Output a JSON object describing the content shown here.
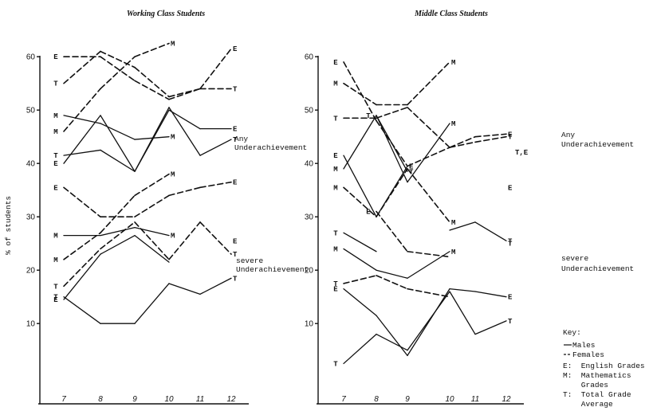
{
  "chart_data": [
    {
      "type": "line",
      "title": "Working Class Students",
      "ylabel": "% of students",
      "x": [
        "7",
        "8",
        "9",
        "10",
        "11",
        "12"
      ],
      "ylim": [
        0,
        62
      ],
      "yticks": [
        10,
        20,
        30,
        40,
        50,
        60
      ],
      "grid": false,
      "groups": [
        {
          "label": "Any Underachievement",
          "series": [
            {
              "code": "E",
              "sex": "Females",
              "values": [
                60,
                60,
                55.5,
                52,
                54,
                61.5
              ]
            },
            {
              "code": "M",
              "sex": "Females",
              "values": [
                46,
                54,
                60,
                62.5,
                null,
                null
              ]
            },
            {
              "code": "T",
              "sex": "Females",
              "values": [
                55,
                61,
                58,
                52.5,
                54,
                54
              ]
            },
            {
              "code": "M",
              "sex": "Males",
              "values": [
                49,
                47.5,
                44.5,
                45,
                null,
                null
              ]
            },
            {
              "code": "E",
              "sex": "Males",
              "values": [
                40,
                49,
                38.5,
                50,
                46.5,
                46.5
              ]
            },
            {
              "code": "T",
              "sex": "Males",
              "values": [
                41.5,
                42.5,
                38.5,
                50.5,
                41.5,
                44.5
              ]
            }
          ]
        },
        {
          "label": "severe Underachievement",
          "series": [
            {
              "code": "E",
              "sex": "Females",
              "values": [
                35.5,
                30,
                30,
                34,
                35.5,
                36.5
              ]
            },
            {
              "code": "M",
              "sex": "Females",
              "values": [
                22,
                27,
                34,
                38,
                null,
                null
              ]
            },
            {
              "code": "T",
              "sex": "Females",
              "values": [
                17,
                24,
                29,
                22,
                29,
                23
              ]
            },
            {
              "code": "M",
              "sex": "Males",
              "values": [
                26.5,
                26.5,
                28,
                26.5,
                null,
                null
              ]
            },
            {
              "code": "E",
              "sex": "Males",
              "values": [
                14.5,
                23,
                26.5,
                21.5,
                null,
                25.5
              ]
            },
            {
              "code": "T",
              "sex": "Males",
              "values": [
                15,
                10,
                10,
                17.5,
                15.5,
                18.5
              ]
            }
          ]
        }
      ]
    },
    {
      "type": "line",
      "title": "Middle Class Students",
      "ylabel": "",
      "x": [
        "7",
        "8",
        "9",
        "10",
        "11",
        "12"
      ],
      "ylim": [
        0,
        62
      ],
      "yticks": [
        10,
        20,
        30,
        40,
        50,
        60
      ],
      "grid": false,
      "groups": [
        {
          "label": "Any Underachievement",
          "series": [
            {
              "code": "E",
              "sex": "Females",
              "values": [
                59,
                48,
                39.5,
                43,
                45,
                45.5
              ]
            },
            {
              "code": "M",
              "sex": "Females",
              "values": [
                55,
                51,
                51,
                59,
                null,
                null
              ]
            },
            {
              "code": "T",
              "sex": "Females",
              "values": [
                48.5,
                48.5,
                50.5,
                43,
                44,
                45
              ]
            },
            {
              "code": "E",
              "sex": "Males",
              "values": [
                41.5,
                30,
                39.5,
                null,
                null,
                null
              ]
            },
            {
              "code": "M",
              "sex": "Males",
              "values": [
                39,
                49,
                36.5,
                47.5,
                null,
                null
              ]
            },
            {
              "code": "T",
              "sex": "Males",
              "values": [
                null,
                49,
                38.5,
                null,
                null,
                null
              ]
            }
          ]
        },
        {
          "label": "severe Underachievement",
          "series": [
            {
              "code": "E",
              "sex": "Females",
              "values": [
                null,
                31,
                23.5,
                22.5,
                null,
                35.5
              ]
            },
            {
              "code": "M",
              "sex": "Females",
              "values": [
                35.5,
                30,
                39,
                29,
                null,
                null
              ]
            },
            {
              "code": "T",
              "sex": "Females",
              "values": [
                17.5,
                19,
                16.5,
                15,
                null,
                25
              ]
            },
            {
              "code": "T",
              "sex": "Males",
              "values": [
                27,
                23.5,
                null,
                27.5,
                29,
                25.5
              ]
            },
            {
              "code": "M",
              "sex": "Males",
              "values": [
                24,
                20,
                18.5,
                23.5,
                null,
                null
              ]
            },
            {
              "code": "E",
              "sex": "Males",
              "values": [
                16.5,
                11.5,
                4,
                16.5,
                16,
                15
              ]
            },
            {
              "code": "T",
              "sex": "Males",
              "values": [
                2.5,
                8,
                5,
                16,
                8,
                10.5
              ]
            }
          ]
        }
      ]
    }
  ],
  "labels": {
    "any": [
      "Any",
      "Underachievement"
    ],
    "severe": [
      "severe",
      "Underachievement"
    ]
  },
  "key": {
    "title": "Key:",
    "lines": [
      "Males",
      "Females",
      "E:  English Grades",
      "M:  Mathematics",
      "    Grades",
      "T:  Total Grade",
      "    Average"
    ]
  },
  "right_tail_marker": "T,E"
}
